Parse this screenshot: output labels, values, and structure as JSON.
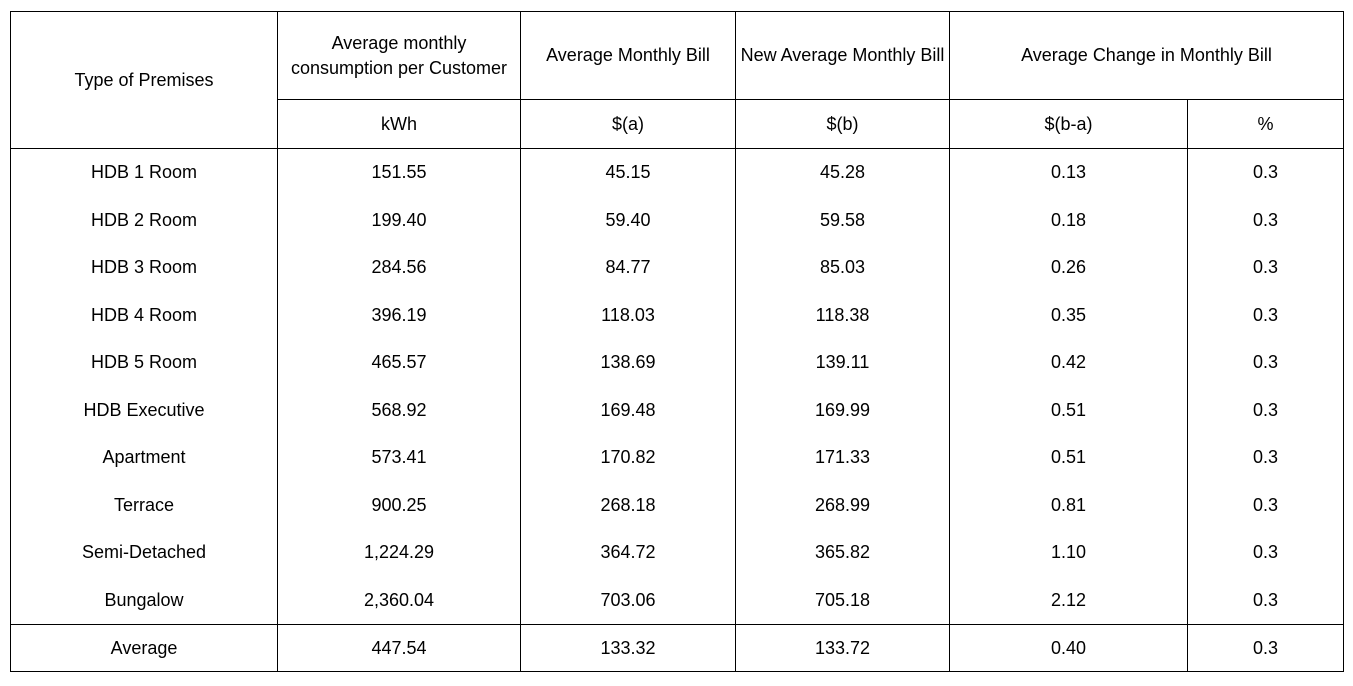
{
  "table": {
    "headers": {
      "type_of_premises": "Type of Premises",
      "consumption": "Average monthly consumption per Customer",
      "avg_bill": "Average Monthly Bill",
      "new_avg_bill": "New Average Monthly Bill",
      "avg_change": "Average Change in Monthly Bill"
    },
    "units": {
      "consumption": "kWh",
      "avg_bill": "$(a)",
      "new_avg_bill": "$(b)",
      "change_abs": "$(b-a)",
      "change_pct": "%"
    },
    "rows": [
      {
        "type": "HDB 1 Room",
        "kwh": "151.55",
        "bill": "45.15",
        "new_bill": "45.28",
        "change": "0.13",
        "pct": "0.3"
      },
      {
        "type": "HDB 2 Room",
        "kwh": "199.40",
        "bill": "59.40",
        "new_bill": "59.58",
        "change": "0.18",
        "pct": "0.3"
      },
      {
        "type": "HDB 3 Room",
        "kwh": "284.56",
        "bill": "84.77",
        "new_bill": "85.03",
        "change": "0.26",
        "pct": "0.3"
      },
      {
        "type": "HDB 4 Room",
        "kwh": "396.19",
        "bill": "118.03",
        "new_bill": "118.38",
        "change": "0.35",
        "pct": "0.3"
      },
      {
        "type": "HDB 5 Room",
        "kwh": "465.57",
        "bill": "138.69",
        "new_bill": "139.11",
        "change": "0.42",
        "pct": "0.3"
      },
      {
        "type": "HDB Executive",
        "kwh": "568.92",
        "bill": "169.48",
        "new_bill": "169.99",
        "change": "0.51",
        "pct": "0.3"
      },
      {
        "type": "Apartment",
        "kwh": "573.41",
        "bill": "170.82",
        "new_bill": "171.33",
        "change": "0.51",
        "pct": "0.3"
      },
      {
        "type": "Terrace",
        "kwh": "900.25",
        "bill": "268.18",
        "new_bill": "268.99",
        "change": "0.81",
        "pct": "0.3"
      },
      {
        "type": "Semi-Detached",
        "kwh": "1,224.29",
        "bill": "364.72",
        "new_bill": "365.82",
        "change": "1.10",
        "pct": "0.3"
      },
      {
        "type": "Bungalow",
        "kwh": "2,360.04",
        "bill": "703.06",
        "new_bill": "705.18",
        "change": "2.12",
        "pct": "0.3"
      }
    ],
    "average": {
      "type": "Average",
      "kwh": "447.54",
      "bill": "133.32",
      "new_bill": "133.72",
      "change": "0.40",
      "pct": "0.3"
    }
  }
}
